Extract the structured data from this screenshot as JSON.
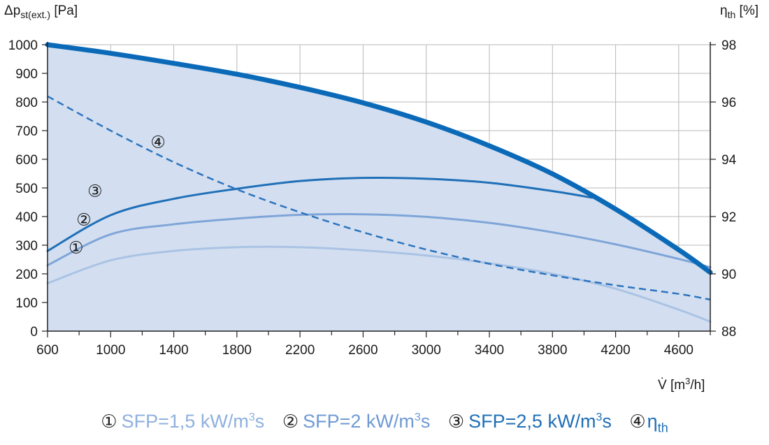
{
  "chart_data": {
    "type": "line",
    "ylabel_left": {
      "base": "Δp",
      "sub": "st(ext.)",
      "unit": " [Pa]"
    },
    "ylabel_right": {
      "base": "η",
      "sub": "th",
      "unit": " [%]"
    },
    "xlabel": {
      "base": "V̇",
      "unit_pre": " [m",
      "sup": "3",
      "unit_post": "/h]"
    },
    "xlim": [
      600,
      4800
    ],
    "ylim_left": [
      0,
      1000
    ],
    "ylim_right": [
      88,
      98
    ],
    "x_ticks": [
      600,
      1000,
      1400,
      1800,
      2200,
      2600,
      3000,
      3400,
      3800,
      4200,
      4600
    ],
    "y_ticks_left": [
      0,
      100,
      200,
      300,
      400,
      500,
      600,
      700,
      800,
      900,
      1000
    ],
    "y_ticks_right": [
      88,
      90,
      92,
      94,
      96,
      98
    ],
    "grid": true,
    "envelope": {
      "x": [
        600,
        1000,
        1400,
        1800,
        2200,
        2600,
        3000,
        3400,
        3800,
        4200,
        4600,
        4800
      ],
      "y": [
        1000,
        970,
        935,
        897,
        851,
        797,
        730,
        647,
        549,
        426,
        284,
        205
      ]
    },
    "series": [
      {
        "marker": "①",
        "axis": "left",
        "color": "#aac3e4",
        "dash": false,
        "x": [
          600,
          1000,
          1400,
          1800,
          2200,
          2600,
          3000,
          3400,
          3800,
          4200,
          4600,
          4800
        ],
        "y": [
          167,
          247,
          280,
          293,
          293,
          282,
          264,
          237,
          200,
          148,
          75,
          33
        ]
      },
      {
        "marker": "②",
        "axis": "left",
        "color": "#7fa5d8",
        "dash": false,
        "x": [
          600,
          1000,
          1400,
          1800,
          2200,
          2600,
          3000,
          3400,
          3800,
          4200,
          4600,
          4800
        ],
        "y": [
          230,
          338,
          373,
          393,
          406,
          408,
          399,
          378,
          345,
          303,
          252,
          223
        ]
      },
      {
        "marker": "③",
        "axis": "left",
        "color": "#1f6fb8",
        "dash": false,
        "x": [
          600,
          1000,
          1400,
          1800,
          2200,
          2600,
          3000,
          3400,
          3800,
          4050
        ],
        "y": [
          280,
          405,
          462,
          497,
          524,
          535,
          532,
          518,
          489,
          466
        ]
      },
      {
        "marker": "④",
        "axis": "right",
        "color": "#2d74bf",
        "dash": true,
        "x": [
          600,
          1000,
          1400,
          1800,
          2200,
          2600,
          3000,
          3400,
          3800,
          4200,
          4600,
          4800
        ],
        "y": [
          96.2,
          95.0,
          93.9,
          92.95,
          92.15,
          91.45,
          90.85,
          90.35,
          89.95,
          89.6,
          89.3,
          89.1
        ]
      }
    ],
    "annotations": [
      {
        "text": "①",
        "x": 780,
        "y": 272
      },
      {
        "text": "②",
        "x": 830,
        "y": 370
      },
      {
        "text": "③",
        "x": 900,
        "y": 470
      },
      {
        "text": "④",
        "x": 1300,
        "y": 640
      }
    ]
  },
  "legend": [
    {
      "marker": "①",
      "text": "SFP=1,5 kW/m",
      "sup": "3",
      "tail": "s",
      "sub": "",
      "color": "#8eb0df"
    },
    {
      "marker": "②",
      "text": "SFP=2 kW/m",
      "sup": "3",
      "tail": "s",
      "sub": "",
      "color": "#6f9ad4"
    },
    {
      "marker": "③",
      "text": "SFP=2,5 kW/m",
      "sup": "3",
      "tail": "s",
      "sub": "",
      "color": "#1f6fb8"
    },
    {
      "marker": "④",
      "text": "η",
      "sup": "",
      "tail": "",
      "sub": "th",
      "color": "#1f6fb8"
    }
  ],
  "colors": {
    "fill": "#d3dff0",
    "envelope": "#0b6ab8",
    "grid": "#b8b8b8",
    "axis": "#222222"
  }
}
